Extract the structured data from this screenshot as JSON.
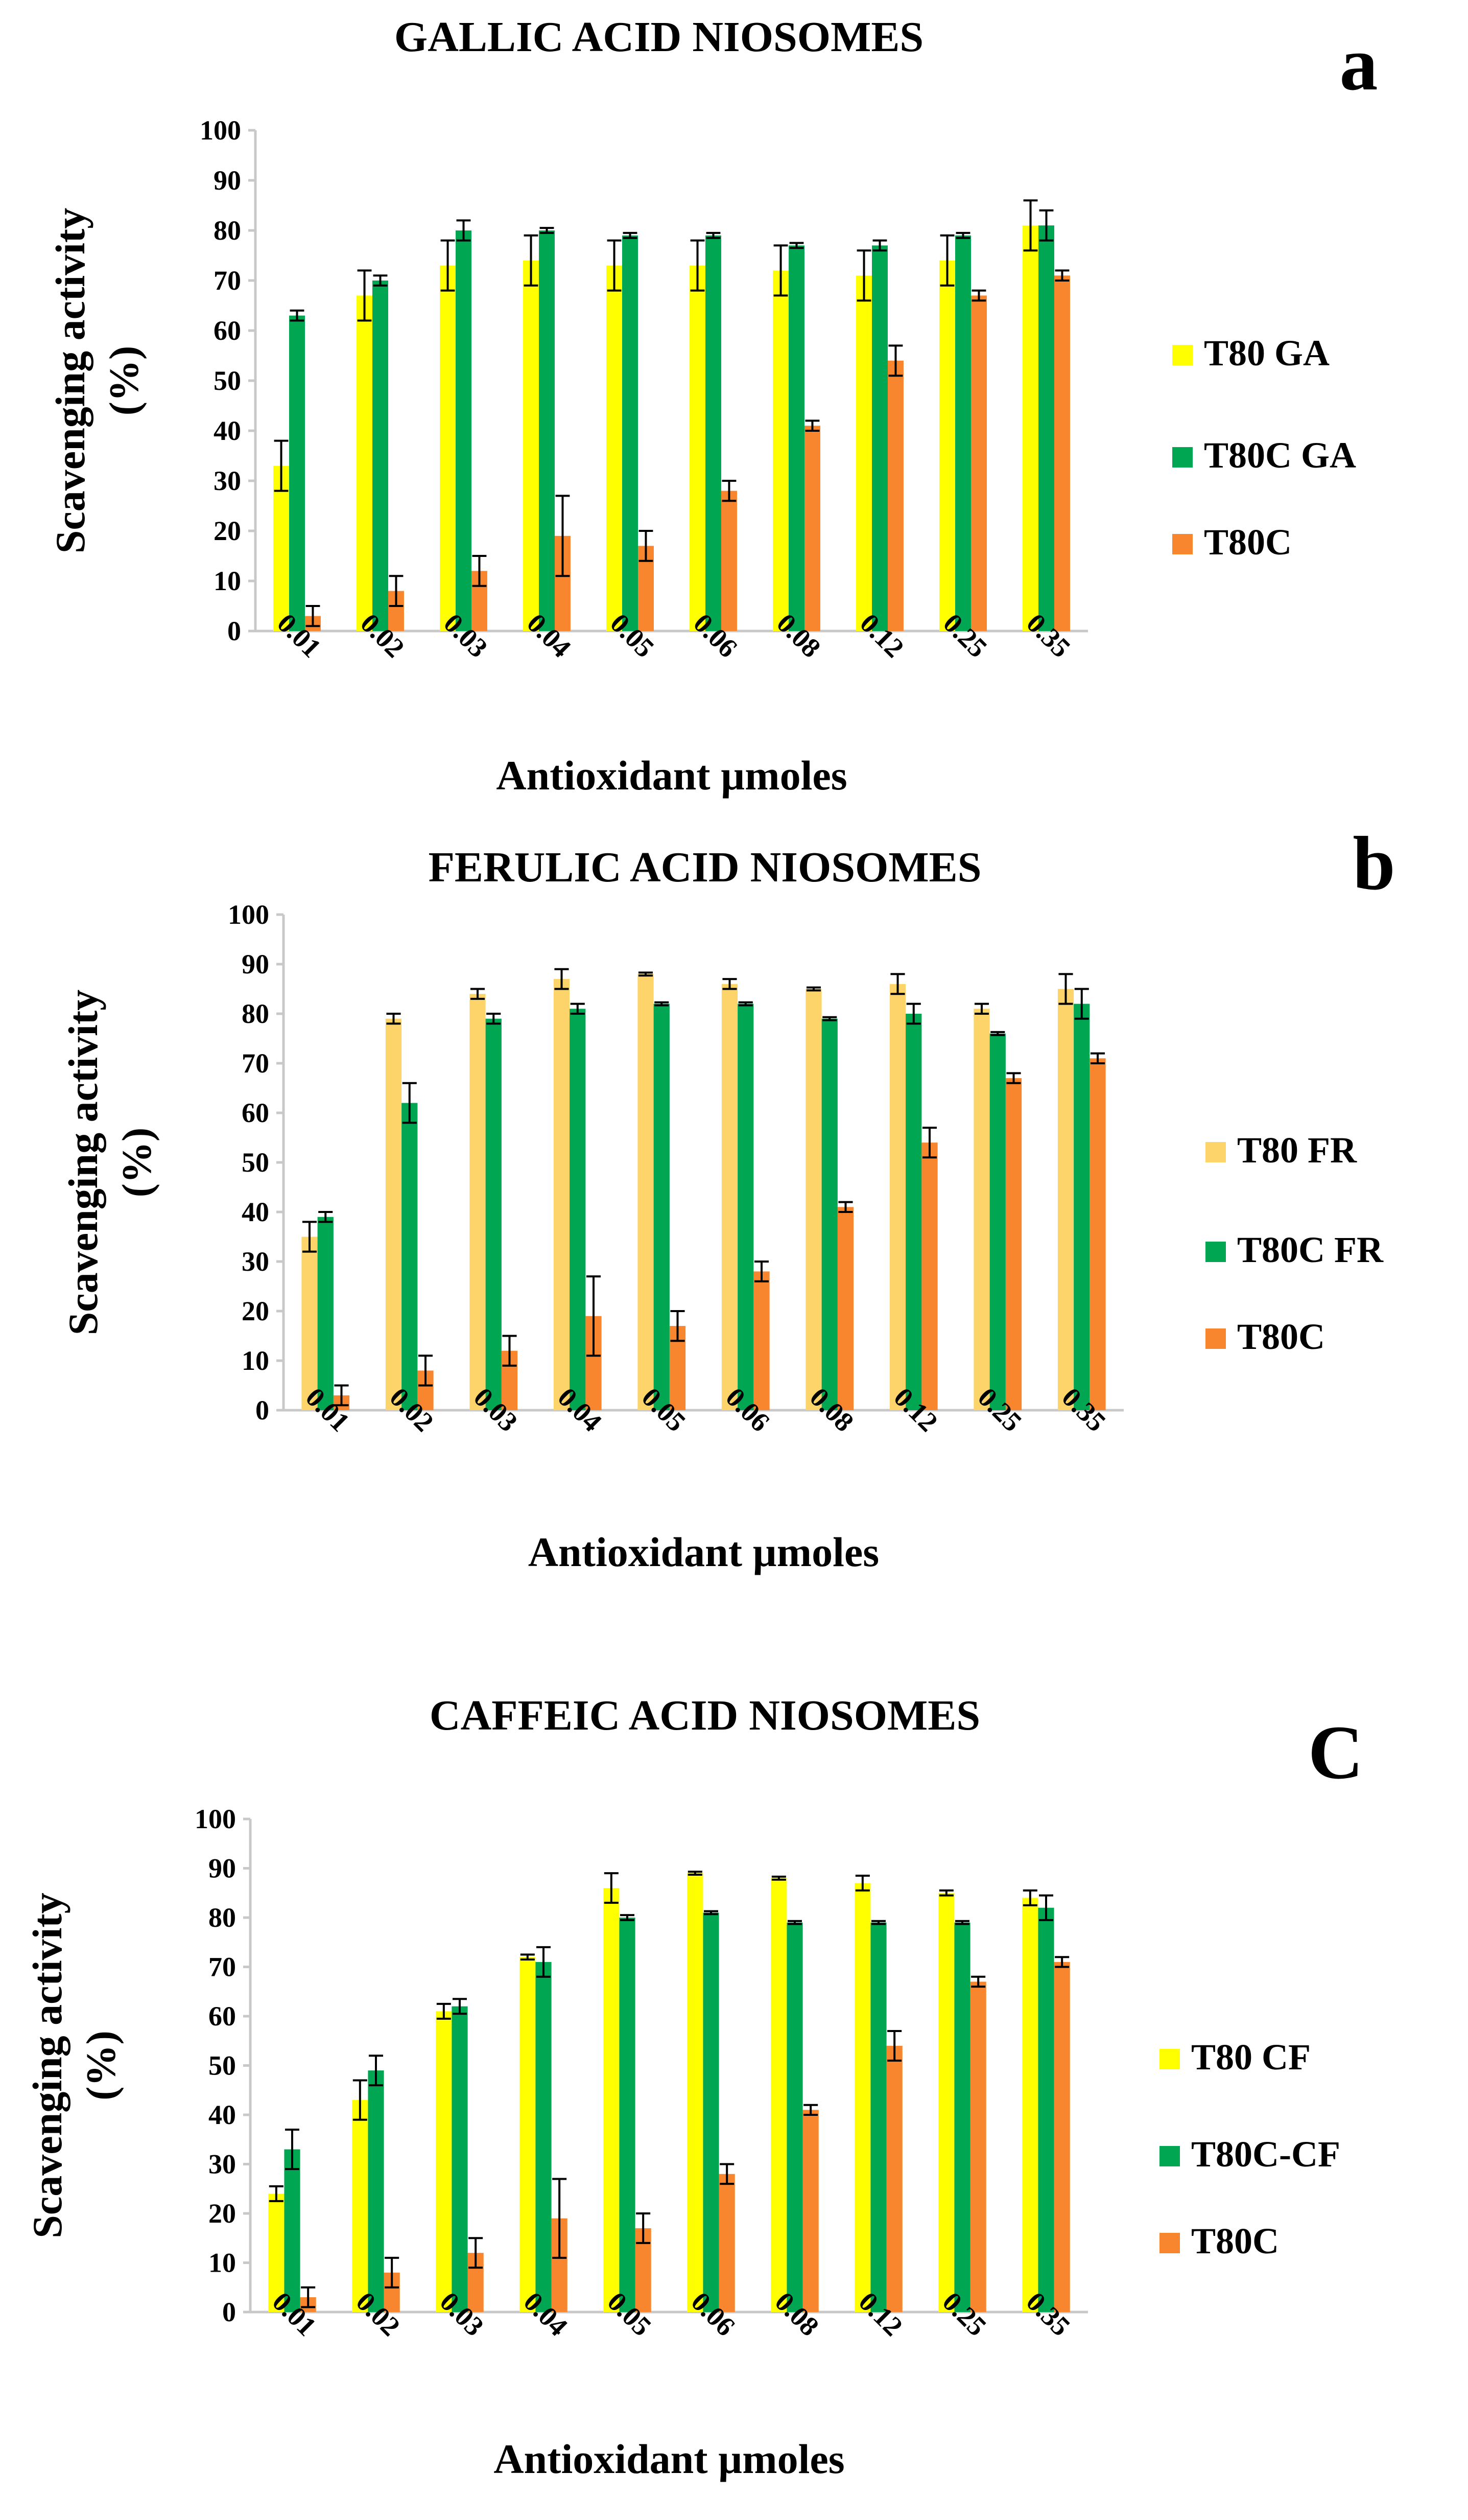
{
  "chart_data": [
    {
      "type": "bar",
      "panel": "a",
      "title": "GALLIC  ACID NIOSOMES",
      "xlabel": "Antioxidant µmoles",
      "ylabel": "Scavenging activity (%)",
      "ylim": [
        0,
        100
      ],
      "yticks": [
        0,
        10,
        20,
        30,
        40,
        50,
        60,
        70,
        80,
        90,
        100
      ],
      "grid": false,
      "legend_position": "right",
      "categories": [
        "0.01",
        "0.02",
        "0.03",
        "0.04",
        "0.05",
        "0.06",
        "0.08",
        "0.12",
        "0.25",
        "0.35"
      ],
      "series": [
        {
          "name": "T80 GA",
          "color": "#FFFF00",
          "values": [
            33,
            67,
            73,
            74,
            73,
            73,
            72,
            71,
            74,
            81
          ],
          "errors": [
            5,
            5,
            5,
            5,
            5,
            5,
            5,
            5,
            5,
            5
          ]
        },
        {
          "name": "T80C GA",
          "color": "#00A651",
          "values": [
            63,
            70,
            80,
            80,
            79,
            79,
            77,
            77,
            79,
            81
          ],
          "errors": [
            1,
            1,
            2,
            0.5,
            0.5,
            0.5,
            0.5,
            1,
            0.5,
            3
          ]
        },
        {
          "name": "T80C",
          "color": "#F7862E",
          "values": [
            3,
            8,
            12,
            19,
            17,
            28,
            41,
            54,
            67,
            71
          ],
          "errors": [
            2,
            3,
            3,
            8,
            3,
            2,
            1,
            3,
            1,
            1
          ]
        }
      ]
    },
    {
      "type": "bar",
      "panel": "b",
      "title": "FERULIC ACID NIOSOMES",
      "xlabel": "Antioxidant µmoles",
      "ylabel": "Scavenging activity (%)",
      "ylim": [
        0,
        100
      ],
      "yticks": [
        0,
        10,
        20,
        30,
        40,
        50,
        60,
        70,
        80,
        90,
        100
      ],
      "grid": false,
      "legend_position": "right",
      "categories": [
        "0.01",
        "0.02",
        "0.03",
        "0.04",
        "0.05",
        "0.06",
        "0.08",
        "0.12",
        "0.25",
        "0.35"
      ],
      "series": [
        {
          "name": "T80 FR",
          "color": "#FCD46A",
          "values": [
            35,
            79,
            84,
            87,
            88,
            86,
            85,
            86,
            81,
            85
          ],
          "errors": [
            3,
            1,
            1,
            2,
            0.3,
            1,
            0.3,
            2,
            1,
            3
          ]
        },
        {
          "name": "T80C FR",
          "color": "#00A651",
          "values": [
            39,
            62,
            79,
            81,
            82,
            82,
            79,
            80,
            76,
            82
          ],
          "errors": [
            1,
            4,
            1,
            1,
            0.3,
            0.3,
            0.3,
            2,
            0.3,
            3
          ]
        },
        {
          "name": "T80C",
          "color": "#F7862E",
          "values": [
            3,
            8,
            12,
            19,
            17,
            28,
            41,
            54,
            67,
            71
          ],
          "errors": [
            2,
            3,
            3,
            8,
            3,
            2,
            1,
            3,
            1,
            1
          ]
        }
      ]
    },
    {
      "type": "bar",
      "panel": "C",
      "title": "CAFFEIC ACID NIOSOMES",
      "xlabel": "Antioxidant µmoles",
      "ylabel": "Scavenging activity (%)",
      "ylim": [
        0,
        100
      ],
      "yticks": [
        0,
        10,
        20,
        30,
        40,
        50,
        60,
        70,
        80,
        90,
        100
      ],
      "grid": false,
      "legend_position": "right",
      "categories": [
        "0.01",
        "0.02",
        "0.03",
        "0.04",
        "0.05",
        "0.06",
        "0.08",
        "0.12",
        "0.25",
        "0.35"
      ],
      "series": [
        {
          "name": "T80 CF",
          "color": "#FFFF00",
          "values": [
            24,
            43,
            61,
            72,
            86,
            89,
            88,
            87,
            85,
            84
          ],
          "errors": [
            1.5,
            4,
            1.5,
            0.5,
            3,
            0.3,
            0.3,
            1.5,
            0.5,
            1.5
          ]
        },
        {
          "name": "T80C-CF",
          "color": "#00A651",
          "values": [
            33,
            49,
            62,
            71,
            80,
            81,
            79,
            79,
            79,
            82
          ],
          "errors": [
            4,
            3,
            1.5,
            3,
            0.5,
            0.3,
            0.3,
            0.3,
            0.3,
            2.5
          ]
        },
        {
          "name": "T80C",
          "color": "#F7862E",
          "values": [
            3,
            8,
            12,
            19,
            17,
            28,
            41,
            54,
            67,
            71
          ],
          "errors": [
            2,
            3,
            3,
            8,
            3,
            2,
            1,
            3,
            1,
            1
          ]
        }
      ]
    }
  ]
}
